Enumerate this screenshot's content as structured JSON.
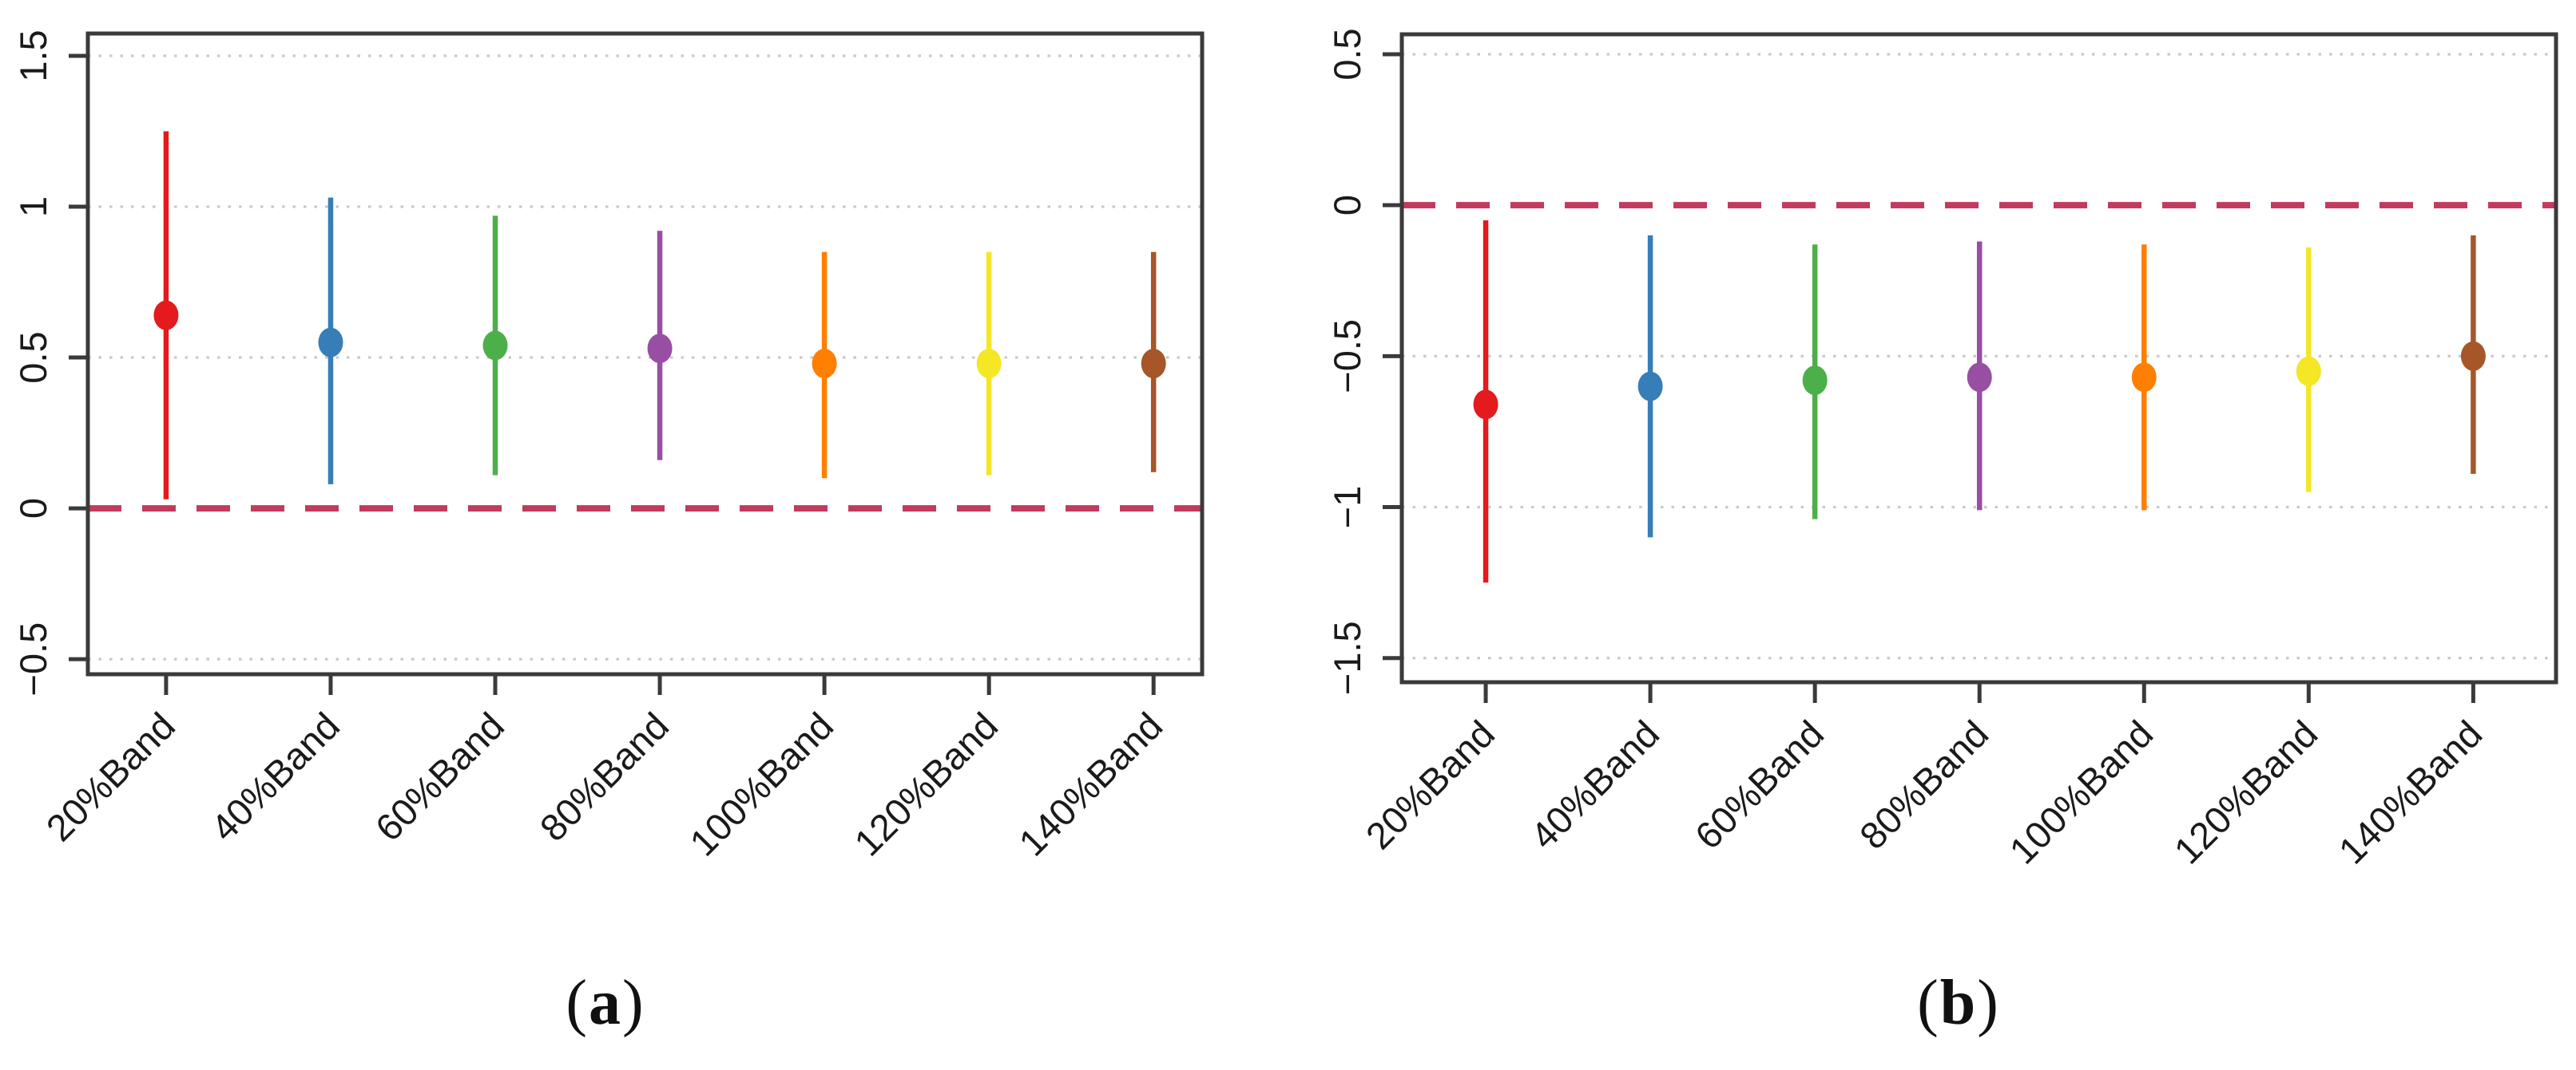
{
  "captions": {
    "open": "(",
    "close": ")",
    "a": "a",
    "b": "b"
  },
  "colors": {
    "band_points": [
      "#E41A1C",
      "#377EB8",
      "#4DAF4A",
      "#984EA3",
      "#FF7F00",
      "#F5E626",
      "#A65628"
    ],
    "zero_line": "#C23A5E",
    "gridline": "#C9C9C9",
    "frame": "#3A3A3A"
  },
  "chart_data": [
    {
      "panel": "a",
      "type": "scatter",
      "subtype": "point-with-ci-range",
      "title": "",
      "xlabel": "",
      "ylabel": "",
      "categories": [
        "20%Band",
        "40%Band",
        "60%Band",
        "80%Band",
        "100%Band",
        "120%Band",
        "140%Band"
      ],
      "series": [
        {
          "name": "estimate",
          "values": [
            0.64,
            0.55,
            0.54,
            0.53,
            0.48,
            0.48,
            0.48
          ]
        },
        {
          "name": "ci_lower",
          "values": [
            0.03,
            0.08,
            0.11,
            0.16,
            0.1,
            0.11,
            0.12
          ]
        },
        {
          "name": "ci_upper",
          "values": [
            1.25,
            1.03,
            0.97,
            0.92,
            0.85,
            0.85,
            0.85
          ]
        }
      ],
      "yticks": [
        {
          "label": "1.5",
          "value": 1.5
        },
        {
          "label": "1",
          "value": 1
        },
        {
          "label": "0.5",
          "value": 0.5
        },
        {
          "label": "0",
          "value": 0
        },
        {
          "label": "−0.5",
          "value": -0.5
        }
      ],
      "ylim": [
        -0.55,
        1.574
      ],
      "reference_line": {
        "y": 0,
        "style": "dashed"
      },
      "grid": "dotted-horizontal-at-ticks",
      "legend": "none"
    },
    {
      "panel": "b",
      "type": "scatter",
      "subtype": "point-with-ci-range",
      "title": "",
      "xlabel": "",
      "ylabel": "",
      "categories": [
        "20%Band",
        "40%Band",
        "60%Band",
        "80%Band",
        "100%Band",
        "120%Band",
        "140%Band"
      ],
      "series": [
        {
          "name": "estimate",
          "values": [
            -0.66,
            -0.6,
            -0.58,
            -0.57,
            -0.57,
            -0.55,
            -0.5
          ]
        },
        {
          "name": "ci_lower",
          "values": [
            -1.25,
            -1.1,
            -1.04,
            -1.01,
            -1.01,
            -0.95,
            -0.89
          ]
        },
        {
          "name": "ci_upper",
          "values": [
            -0.05,
            -0.1,
            -0.13,
            -0.12,
            -0.13,
            -0.14,
            -0.1
          ]
        }
      ],
      "yticks": [
        {
          "label": "0.5",
          "value": 0.5
        },
        {
          "label": "0",
          "value": 0
        },
        {
          "label": "−0.5",
          "value": -0.5
        },
        {
          "label": "−1",
          "value": -1
        },
        {
          "label": "−1.5",
          "value": -1.5
        }
      ],
      "ylim": [
        -1.58,
        0.566
      ],
      "reference_line": {
        "y": 0,
        "style": "dashed"
      },
      "grid": "dotted-horizontal-at-ticks",
      "legend": "none"
    }
  ]
}
